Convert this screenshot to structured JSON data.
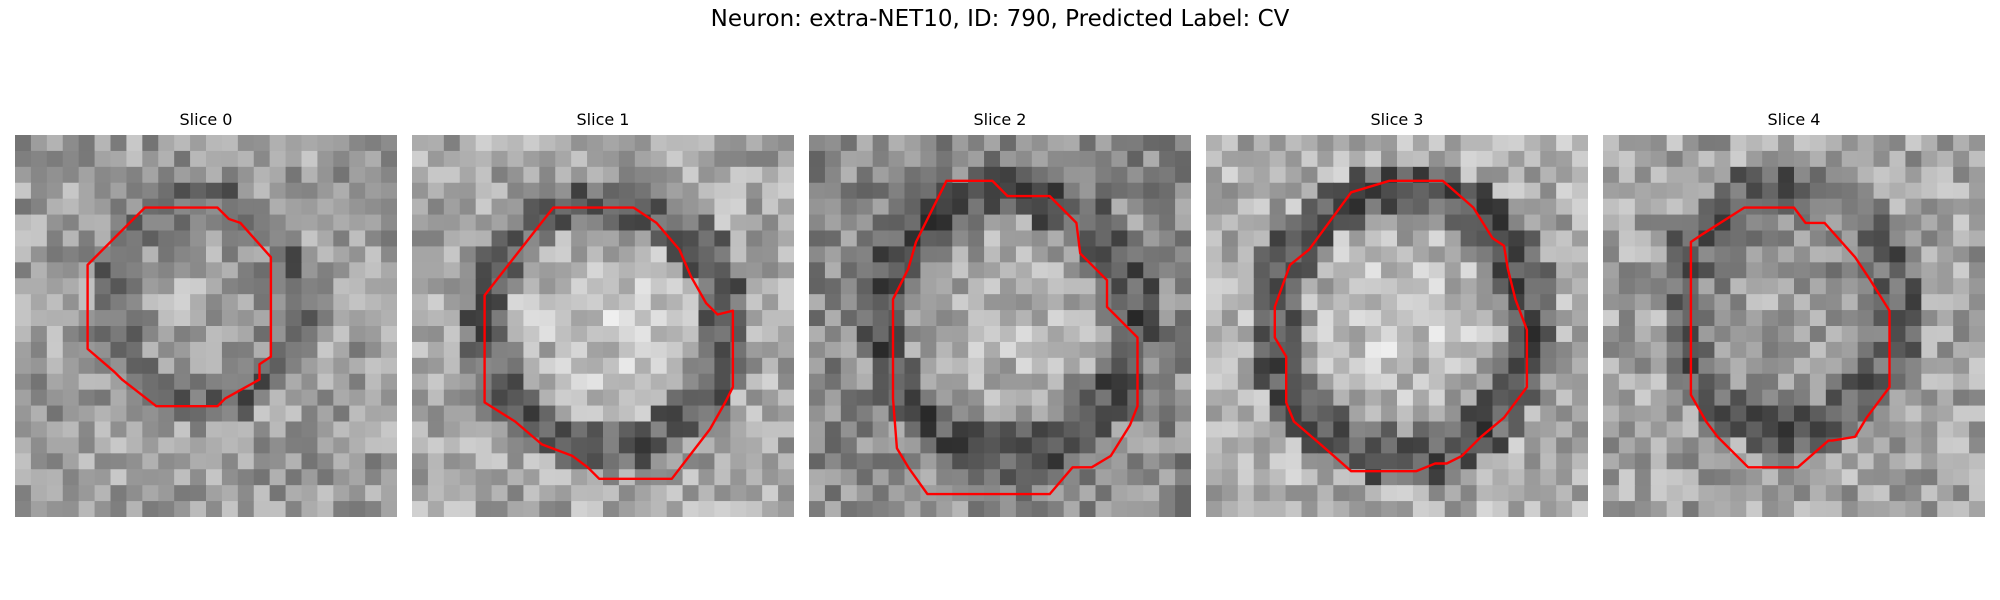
{
  "title": "Neuron: extra-NET10, ID: 790, Predicted Label: CV",
  "colors": {
    "contour": "#ff0000"
  },
  "slices": [
    {
      "label": "Slice 0"
    },
    {
      "label": "Slice 1"
    },
    {
      "label": "Slice 2"
    },
    {
      "label": "Slice 3"
    },
    {
      "label": "Slice 4"
    }
  ]
}
